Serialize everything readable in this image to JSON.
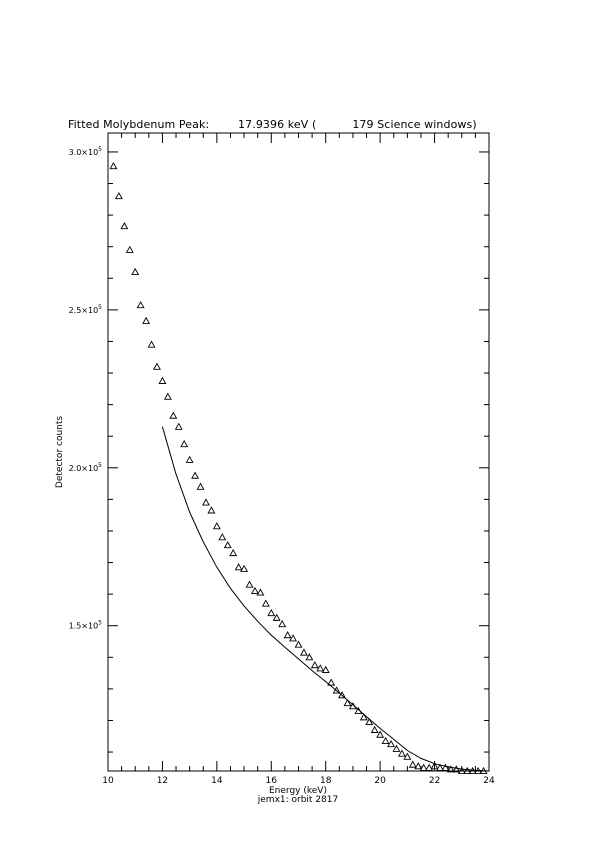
{
  "chart_data": {
    "type": "scatter",
    "title": "Fitted Molybdenum Peak:        17.9396 keV (          179 Science windows)",
    "subtitle": "jemx1: orbit 2817",
    "xlabel": "Energy (keV)",
    "ylabel": "Detector counts",
    "xlim": [
      10,
      24
    ],
    "ylim": [
      104000,
      306000
    ],
    "x_ticks": [
      10,
      12,
      14,
      16,
      18,
      20,
      22,
      24
    ],
    "x_tick_labels": [
      "10",
      "12",
      "14",
      "16",
      "18",
      "20",
      "22",
      "24"
    ],
    "y_ticks": [
      150000,
      200000,
      250000,
      300000
    ],
    "y_tick_labels": [
      {
        "mantissa": "1.5×10",
        "exp": "5"
      },
      {
        "mantissa": "2.0×10",
        "exp": "5"
      },
      {
        "mantissa": "2.5×10",
        "exp": "5"
      },
      {
        "mantissa": "3.0×10",
        "exp": "5"
      }
    ],
    "grid": false,
    "series": [
      {
        "marker": "triangle-open",
        "x": [
          10.2,
          10.4,
          10.6,
          10.8,
          11.0,
          11.2,
          11.4,
          11.6,
          11.8,
          12.0,
          12.2,
          12.4,
          12.6,
          12.8,
          13.0,
          13.2,
          13.4,
          13.6,
          13.8,
          14.0,
          14.2,
          14.4,
          14.6,
          14.8,
          15.0,
          15.2,
          15.4,
          15.6,
          15.8,
          16.0,
          16.2,
          16.4,
          16.6,
          16.8,
          17.0,
          17.2,
          17.4,
          17.6,
          17.8,
          18.0,
          18.2,
          18.4,
          18.6,
          18.8,
          19.0,
          19.2,
          19.4,
          19.6,
          19.8,
          20.0,
          20.2,
          20.4,
          20.6,
          20.8,
          21.0,
          21.2,
          21.4,
          21.6,
          21.8,
          22.0,
          22.2,
          22.4,
          22.6,
          22.8,
          23.0,
          23.2,
          23.4,
          23.6,
          23.8
        ],
        "y": [
          295500,
          286000,
          276500,
          269000,
          262000,
          251500,
          246500,
          239000,
          232000,
          227500,
          222500,
          216500,
          213000,
          207500,
          202500,
          197500,
          194000,
          189000,
          186500,
          181500,
          178000,
          175500,
          173000,
          168500,
          168000,
          163000,
          161000,
          160500,
          157000,
          154000,
          152500,
          150500,
          147000,
          146000,
          144000,
          141500,
          140000,
          137500,
          136500,
          136000,
          132000,
          129500,
          128000,
          125500,
          124500,
          123000,
          121000,
          119500,
          117000,
          115500,
          113500,
          112500,
          111000,
          109500,
          108500,
          106000,
          105500,
          105000,
          105000,
          105500,
          105000,
          105000,
          104500,
          104500,
          104000,
          104000,
          104000,
          104000,
          104000
        ]
      },
      {
        "name": "",
        "line": true,
        "x": [
          12.0,
          12.5,
          13.0,
          13.5,
          14.0,
          14.5,
          15.0,
          15.5,
          16.0,
          16.5,
          17.0,
          17.5,
          18.0,
          18.5,
          19.0,
          19.5,
          20.0,
          20.5,
          21.0,
          21.5,
          22.0,
          22.5,
          23.0,
          23.5,
          24.0
        ],
        "y": [
          213000,
          198000,
          186000,
          176500,
          168500,
          161800,
          156200,
          151400,
          147000,
          143200,
          139500,
          135800,
          132300,
          128700,
          125000,
          121200,
          117500,
          114000,
          110500,
          108000,
          106300,
          105300,
          104600,
          104200,
          104000
        ]
      }
    ]
  }
}
